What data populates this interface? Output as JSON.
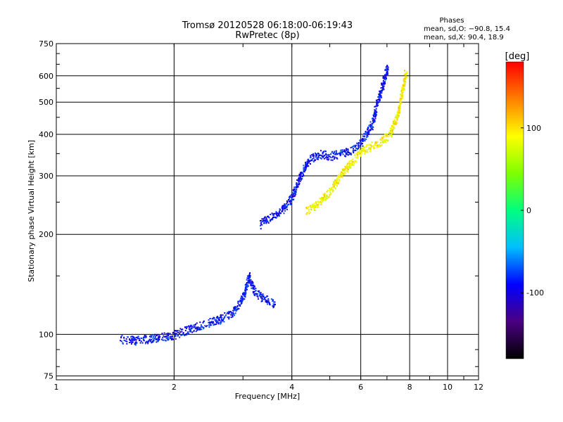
{
  "chart_data": {
    "type": "scatter",
    "title": "Tromsø 20120528 06:18:00-06:19:43",
    "subtitle": "RwPretec (8p)",
    "xlabel": "Frequency [MHz]",
    "ylabel": "Stationary phase Virtual Height [km]",
    "x_scale": "log",
    "y_scale": "log",
    "xlim": [
      1,
      12
    ],
    "ylim": [
      73,
      750
    ],
    "x_ticks": [
      1,
      2,
      4,
      6,
      8,
      10,
      12
    ],
    "x_tick_labels": [
      "1",
      "2",
      "4",
      "6",
      "8",
      "10",
      "12"
    ],
    "y_ticks": [
      75,
      100,
      200,
      300,
      400,
      500,
      600,
      750
    ],
    "y_tick_labels": [
      "75",
      "100",
      "200",
      "300",
      "400",
      "500",
      "600",
      "750"
    ],
    "grid": true,
    "info_title": "Phases",
    "info_line1": "mean, sd,O: −90.8, 15.4",
    "info_line2": "mean, sd,X:  90.4, 18.9",
    "colorbar": {
      "label": "[deg]",
      "range": [
        -180,
        180
      ],
      "ticks": [
        100,
        0,
        -100
      ],
      "tick_labels": [
        "100",
        "0",
        "-100"
      ],
      "colors": [
        "#000000",
        "#4b0082",
        "#0000ff",
        "#00bfff",
        "#00ff7f",
        "#7fff00",
        "#ffff00",
        "#ff7f00",
        "#ff0000"
      ]
    },
    "series": [
      {
        "name": "O",
        "mean_phase": -90.8,
        "trace": [
          [
            1.45,
            97
          ],
          [
            1.6,
            96
          ],
          [
            1.8,
            98
          ],
          [
            2.0,
            100
          ],
          [
            2.2,
            104
          ],
          [
            2.4,
            108
          ],
          [
            2.6,
            111
          ],
          [
            2.8,
            116
          ],
          [
            3.0,
            130
          ],
          [
            3.1,
            150
          ],
          [
            3.2,
            135
          ],
          [
            3.4,
            128
          ],
          [
            3.6,
            124
          ],
          [
            3.3,
            215
          ],
          [
            3.5,
            225
          ],
          [
            3.8,
            240
          ],
          [
            4.0,
            260
          ],
          [
            4.2,
            300
          ],
          [
            4.4,
            335
          ],
          [
            4.7,
            350
          ],
          [
            5.0,
            345
          ],
          [
            5.3,
            350
          ],
          [
            5.7,
            360
          ],
          [
            6.0,
            380
          ],
          [
            6.4,
            430
          ],
          [
            6.6,
            500
          ],
          [
            6.8,
            560
          ],
          [
            7.0,
            640
          ]
        ]
      },
      {
        "name": "X",
        "mean_phase": 90.4,
        "trace": [
          [
            4.3,
            235
          ],
          [
            4.6,
            245
          ],
          [
            4.8,
            258
          ],
          [
            5.0,
            270
          ],
          [
            5.2,
            290
          ],
          [
            5.4,
            310
          ],
          [
            5.8,
            340
          ],
          [
            6.0,
            355
          ],
          [
            6.4,
            370
          ],
          [
            6.8,
            385
          ],
          [
            7.1,
            400
          ],
          [
            7.4,
            450
          ],
          [
            7.6,
            520
          ],
          [
            7.8,
            620
          ]
        ]
      }
    ]
  }
}
